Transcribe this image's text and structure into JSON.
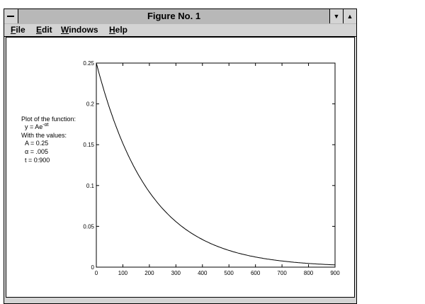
{
  "window": {
    "title": "Figure No. 1",
    "menu": [
      "File",
      "Edit",
      "Windows",
      "Help"
    ]
  },
  "annotation": {
    "lines": [
      "Plot of the function:",
      "y = Ae",
      "With the values:",
      "A = 0.25",
      "α = .005",
      "t = 0:900"
    ],
    "exponent": "-αt"
  },
  "chart_data": {
    "type": "line",
    "function": "y = 0.25*exp(-0.005*t)",
    "A": 0.25,
    "alpha": 0.005,
    "xlim": [
      0,
      900
    ],
    "ylim": [
      0,
      0.25
    ],
    "xticks": [
      "0",
      "100",
      "200",
      "300",
      "400",
      "500",
      "600",
      "700",
      "800",
      "900"
    ],
    "yticks": [
      "0",
      "0.05",
      "0.1",
      "0.15",
      "0.2",
      "0.25"
    ],
    "grid": false,
    "title": "",
    "xlabel": "",
    "ylabel": ""
  }
}
